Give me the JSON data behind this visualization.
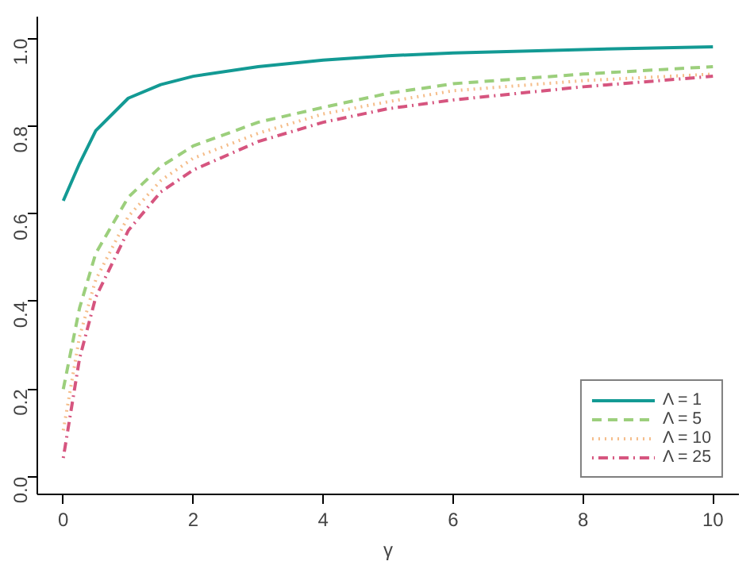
{
  "chart_data": {
    "type": "line",
    "xlabel": "γ",
    "xlim": [
      -0.4,
      10.4
    ],
    "ylim": [
      -0.04,
      1.05
    ],
    "xticks": [
      0,
      2,
      4,
      6,
      8,
      10
    ],
    "yticks": [
      {
        "value": 0,
        "label": "0.0"
      },
      {
        "value": 0.2,
        "label": "0.2"
      },
      {
        "value": 0.4,
        "label": "0.4"
      },
      {
        "value": 0.6,
        "label": "0.6"
      },
      {
        "value": 0.8,
        "label": "0.8"
      },
      {
        "value": 1,
        "label": "1.0"
      }
    ],
    "x": [
      0,
      0.25,
      0.5,
      1,
      1.5,
      2,
      3,
      4,
      5,
      6,
      8,
      10
    ],
    "grid": false,
    "legend": "bottom right",
    "marker": "none",
    "series": [
      {
        "name": "Λ = 1",
        "color": "#139a94",
        "line_style": "solid",
        "values": [
          0.63,
          0.715,
          0.79,
          0.864,
          0.895,
          0.914,
          0.936,
          0.951,
          0.961,
          0.967,
          0.975,
          0.981
        ]
      },
      {
        "name": "Λ = 5",
        "color": "#9ccf7c",
        "line_style": "dashed",
        "values": [
          0.2,
          0.385,
          0.51,
          0.638,
          0.708,
          0.755,
          0.809,
          0.843,
          0.875,
          0.897,
          0.919,
          0.936
        ]
      },
      {
        "name": "Λ = 10",
        "color": "#f5bd8a",
        "line_style": "dotted",
        "values": [
          0.106,
          0.32,
          0.45,
          0.594,
          0.676,
          0.727,
          0.784,
          0.828,
          0.856,
          0.881,
          0.904,
          0.919
        ]
      },
      {
        "name": "Λ = 25",
        "color": "#d6557f",
        "line_style": "dashdot",
        "values": [
          0.043,
          0.27,
          0.41,
          0.562,
          0.65,
          0.7,
          0.765,
          0.809,
          0.84,
          0.86,
          0.89,
          0.914
        ]
      }
    ]
  }
}
